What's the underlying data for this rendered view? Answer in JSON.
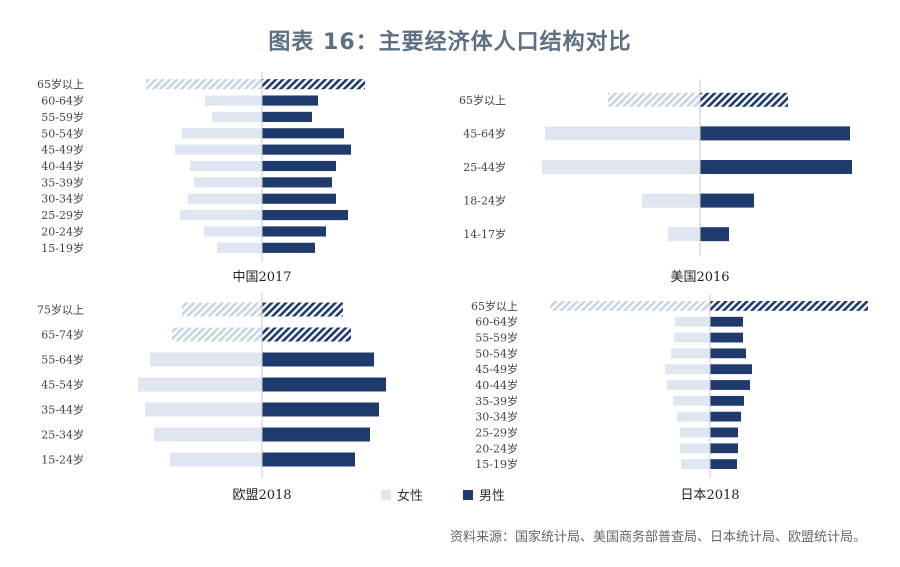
{
  "title": "图表 16：主要经济体人口结构对比",
  "source": "资料来源：国家统计局、美国商务部普查局、日本统计局、欧盟统计局。",
  "colors": {
    "female": "#dfe6f0",
    "male": "#1f3b6e",
    "axis": "#c8c8c8"
  },
  "chart_data": [
    {
      "type": "bar",
      "title": "中国2017",
      "categories": [
        "65岁以上",
        "60-64岁",
        "55-59岁",
        "50-54岁",
        "45-49岁",
        "40-44岁",
        "35-39岁",
        "30-34岁",
        "25-29岁",
        "20-24岁",
        "15-19岁"
      ],
      "series": [
        {
          "name": "女性",
          "values": [
            116,
            57,
            50,
            80,
            87,
            72,
            68,
            74,
            82,
            58,
            45
          ]
        },
        {
          "name": "男性",
          "values": [
            103,
            56,
            50,
            82,
            89,
            74,
            70,
            74,
            86,
            64,
            53
          ]
        }
      ],
      "hatched_categories": [
        "65岁以上"
      ]
    },
    {
      "type": "bar",
      "title": "美国2016",
      "categories": [
        "65岁以上",
        "45-64岁",
        "25-44岁",
        "18-24岁",
        "14-17岁"
      ],
      "series": [
        {
          "name": "女性",
          "values": [
            92,
            155,
            158,
            58,
            32
          ]
        },
        {
          "name": "男性",
          "values": [
            88,
            150,
            152,
            54,
            29
          ]
        }
      ],
      "hatched_categories": [
        "65岁以上"
      ]
    },
    {
      "type": "bar",
      "title": "欧盟2018",
      "categories": [
        "75岁以上",
        "65-74岁",
        "55-64岁",
        "45-54岁",
        "35-44岁",
        "25-34岁",
        "15-24岁"
      ],
      "series": [
        {
          "name": "女性",
          "values": [
            80,
            90,
            112,
            124,
            117,
            108,
            92
          ]
        },
        {
          "name": "男性",
          "values": [
            81,
            89,
            112,
            124,
            117,
            108,
            93
          ]
        }
      ],
      "hatched_categories": [
        "75岁以上",
        "65-74岁"
      ]
    },
    {
      "type": "bar",
      "title": "日本2018",
      "categories": [
        "65岁以上",
        "60-64岁",
        "55-59岁",
        "50-54岁",
        "45-49岁",
        "40-44岁",
        "35-39岁",
        "30-34岁",
        "25-29岁",
        "20-24岁",
        "15-19岁"
      ],
      "series": [
        {
          "name": "女性",
          "values": [
            160,
            35,
            36,
            39,
            45,
            43,
            37,
            33,
            30,
            30,
            29
          ]
        },
        {
          "name": "男性",
          "values": [
            158,
            33,
            33,
            36,
            42,
            40,
            34,
            31,
            28,
            28,
            27
          ]
        }
      ],
      "hatched_categories": [
        "65岁以上"
      ]
    }
  ],
  "legend": {
    "female": "女性",
    "male": "男性"
  }
}
